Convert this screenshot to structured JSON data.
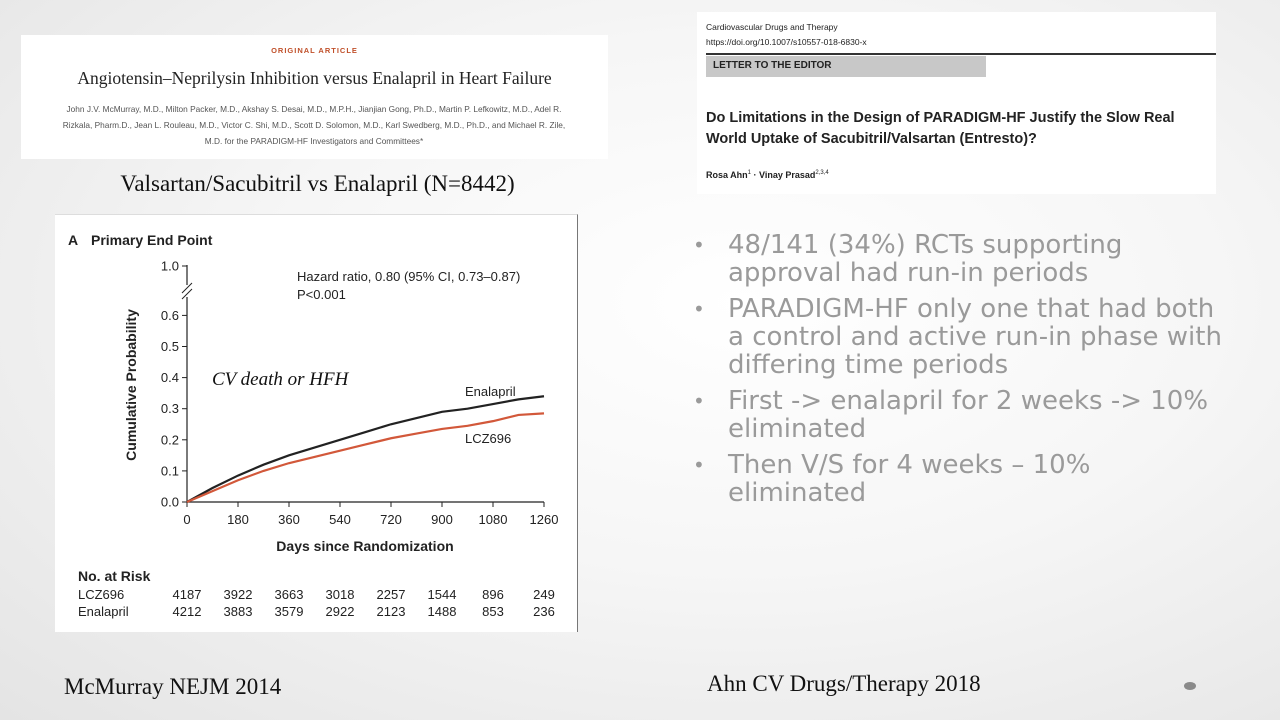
{
  "left_article": {
    "label": "ORIGINAL ARTICLE",
    "title": "Angiotensin–Neprilysin Inhibition versus Enalapril in Heart Failure",
    "authors_line1": "John J.V. McMurray, M.D., Milton Packer, M.D., Akshay S. Desai, M.D., M.P.H., Jianjian Gong, Ph.D., Martin P. Lefkowitz, M.D., Adel R.",
    "authors_line2": "Rizkala, Pharm.D., Jean L. Rouleau, M.D., Victor C. Shi, M.D., Scott D. Solomon, M.D., Karl Swedberg, M.D., Ph.D., and Michael R. Zile,",
    "authors_line3": "M.D. for the PARADIGM-HF Investigators and Committees*"
  },
  "left_heading": "Valsartan/Sacubitril vs Enalapril (N=8442)",
  "figure": {
    "panel_letter": "A",
    "panel_title": "Primary End Point",
    "hazard_line1": "Hazard ratio, 0.80 (95% CI, 0.73–0.87)",
    "hazard_line2": "P<0.001",
    "annotation": "CV death or HFH",
    "label_enalapril": "Enalapril",
    "label_lcz": "LCZ696",
    "risk_title": "No. at Risk",
    "risk_rows": [
      {
        "name": "LCZ696",
        "values": [
          "4187",
          "3922",
          "3663",
          "3018",
          "2257",
          "1544",
          "896",
          "249"
        ]
      },
      {
        "name": "Enalapril",
        "values": [
          "4212",
          "3883",
          "3579",
          "2922",
          "2123",
          "1488",
          "853",
          "236"
        ]
      }
    ]
  },
  "chart_data": {
    "type": "line",
    "title": "Primary End Point",
    "xlabel": "Days since Randomization",
    "ylabel": "Cumulative Probability",
    "xlim": [
      0,
      1260
    ],
    "ylim": [
      0,
      1.0
    ],
    "axis_break": true,
    "x_ticks": [
      "0",
      "180",
      "360",
      "540",
      "720",
      "900",
      "1080",
      "1260"
    ],
    "y_ticks": [
      "0.0",
      "0.1",
      "0.2",
      "0.3",
      "0.4",
      "0.5",
      "0.6",
      "1.0"
    ],
    "x": [
      0,
      90,
      180,
      270,
      360,
      450,
      540,
      630,
      720,
      810,
      900,
      990,
      1080,
      1170,
      1260
    ],
    "series": [
      {
        "name": "Enalapril",
        "color": "#222222",
        "values": [
          0,
          0.045,
          0.085,
          0.12,
          0.15,
          0.175,
          0.2,
          0.225,
          0.25,
          0.27,
          0.29,
          0.3,
          0.315,
          0.33,
          0.34
        ]
      },
      {
        "name": "LCZ696",
        "color": "#d2583a",
        "values": [
          0,
          0.035,
          0.07,
          0.1,
          0.125,
          0.145,
          0.165,
          0.185,
          0.205,
          0.22,
          0.235,
          0.245,
          0.26,
          0.28,
          0.285
        ]
      }
    ],
    "grid": false
  },
  "right_article": {
    "journal": "Cardiovascular Drugs and Therapy",
    "doi": "https://doi.org/10.1007/s10557-018-6830-x",
    "section": "LETTER TO THE EDITOR",
    "title": "Do Limitations in the Design of PARADIGM-HF Justify the Slow Real World Uptake of Sacubitril/Valsartan (Entresto)?",
    "authors": "Rosa Ahn",
    "author1_sup": "1",
    "author_sep": " · Vinay Prasad",
    "author2_sup": "2,3,4"
  },
  "bullets": [
    "48/141 (34%) RCTs supporting approval had run-in periods",
    "PARADIGM-HF only one that had both a control and active run-in phase with differing time periods",
    "First -> enalapril for 2 weeks -> 10% eliminated",
    "Then V/S for 4 weeks – 10% eliminated"
  ],
  "bullet_glyph": "•",
  "footer_left": "McMurray NEJM 2014",
  "footer_right": "Ahn CV Drugs/Therapy 2018"
}
